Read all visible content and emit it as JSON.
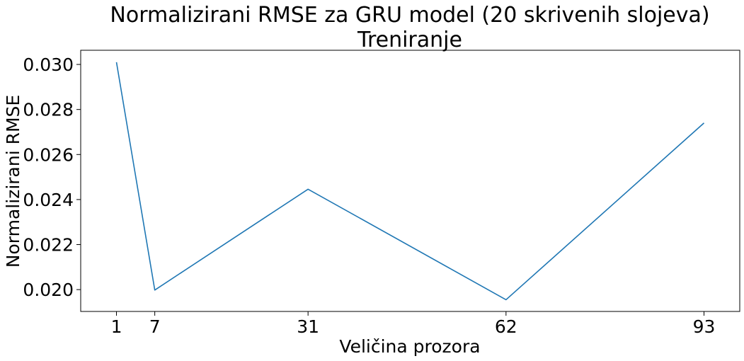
{
  "chart_data": {
    "type": "line",
    "title": "Normalizirani RMSE za GRU model (20 skrivenih slojeva)",
    "subtitle": "Treniranje",
    "xlabel": "Veličina prozora",
    "ylabel": "Normalizirani RMSE",
    "x": [
      1,
      7,
      31,
      62,
      93
    ],
    "series": [
      {
        "values": [
          0.0301,
          0.01998,
          0.02446,
          0.01955,
          0.0274
        ],
        "color": "#1f77b4"
      }
    ],
    "xticks": [
      1,
      7,
      31,
      62,
      93
    ],
    "xtick_labels": [
      "1",
      "7",
      "31",
      "62",
      "93"
    ],
    "yticks": [
      0.02,
      0.022,
      0.024,
      0.026,
      0.028,
      0.03
    ],
    "ytick_labels": [
      "0.020",
      "0.022",
      "0.024",
      "0.026",
      "0.028",
      "0.030"
    ],
    "xlim": [
      -4.6,
      98.6
    ],
    "ylim": [
      0.01903,
      0.03063
    ],
    "grid": false,
    "legend": "none"
  }
}
